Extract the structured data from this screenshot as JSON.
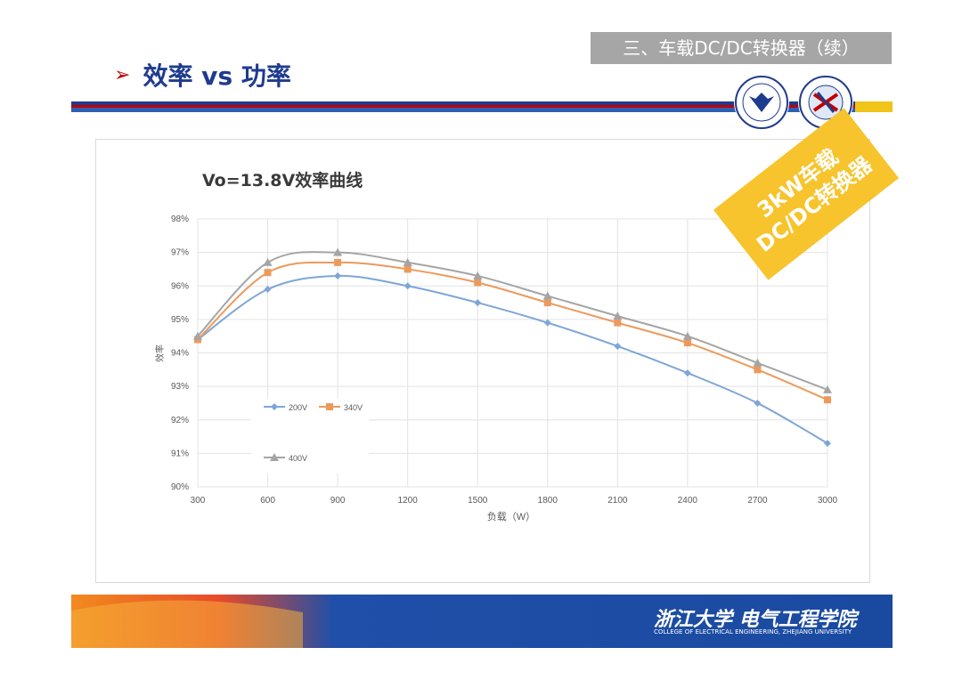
{
  "header": {
    "section_tag": "三、车载DC/DC转换器（续）",
    "title_arrow": "➢",
    "title": "效率 vs 功率"
  },
  "badge": {
    "line1": "3kW车载",
    "line2": "DC/DC转换器"
  },
  "footer": {
    "cn": "浙江大学 电气工程学院",
    "en": "COLLEGE OF ELECTRICAL ENGINEERING, ZHEJIANG UNIVERSITY"
  },
  "colors": {
    "brand_blue": "#1f3b8f",
    "s200": "#7ea6d6",
    "s340": "#ec9a5c",
    "s400": "#a5a5a5",
    "badge": "#f7c42d"
  },
  "chart_data": {
    "type": "line",
    "title": "Vo=13.8V效率曲线",
    "xlabel": "负载（W）",
    "ylabel": "效率",
    "x": [
      300,
      600,
      900,
      1200,
      1500,
      1800,
      2100,
      2400,
      2700,
      3000
    ],
    "yticks": [
      "90%",
      "91%",
      "92%",
      "93%",
      "94%",
      "95%",
      "96%",
      "97%",
      "98%"
    ],
    "ylim": [
      90,
      98
    ],
    "grid": true,
    "legend_position": "bottom-left inside",
    "series": [
      {
        "name": "200V",
        "marker": "diamond",
        "values": [
          94.4,
          95.9,
          96.3,
          96.0,
          95.5,
          94.9,
          94.2,
          93.4,
          92.5,
          91.3
        ]
      },
      {
        "name": "340V",
        "marker": "square",
        "values": [
          94.4,
          96.4,
          96.7,
          96.5,
          96.1,
          95.5,
          94.9,
          94.3,
          93.5,
          92.6
        ]
      },
      {
        "name": "400V",
        "marker": "triangle",
        "values": [
          94.5,
          96.7,
          97.0,
          96.7,
          96.3,
          95.7,
          95.1,
          94.5,
          93.7,
          92.9
        ]
      }
    ]
  }
}
